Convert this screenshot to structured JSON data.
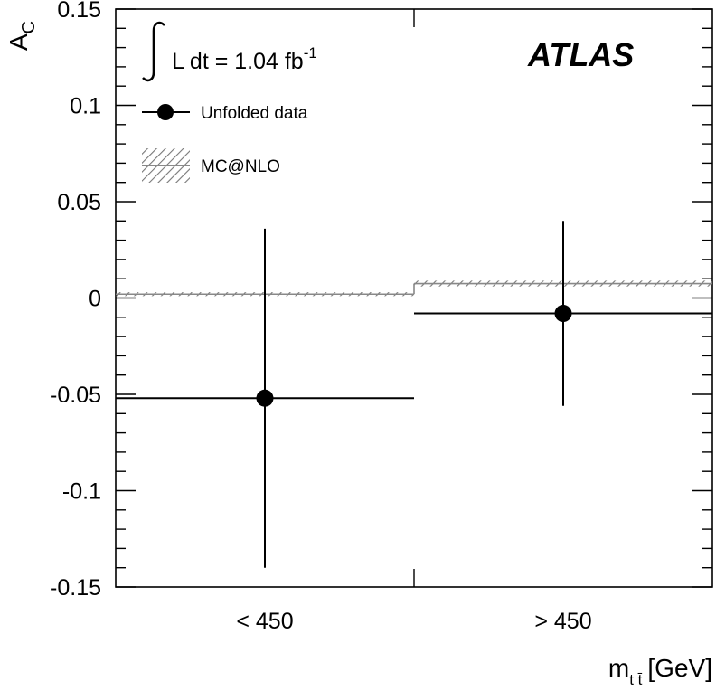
{
  "chart_data": {
    "type": "scatter",
    "experiment_label": "ATLAS",
    "luminosity": {
      "prefix": "L dt = 1.04 fb",
      "superscript": "-1"
    },
    "y_axis": {
      "label_main": "A",
      "label_sub": "C",
      "range": [
        -0.15,
        0.15
      ],
      "major_ticks": [
        -0.15,
        -0.1,
        -0.05,
        0,
        0.05,
        0.1,
        0.15
      ],
      "tick_labels": [
        "-0.15",
        "-0.1",
        "-0.05",
        "0",
        "0.05",
        "0.1",
        "0.15"
      ],
      "minor_step": 0.01
    },
    "x_axis": {
      "label_main": "m",
      "label_sub": "t t̄",
      "label_unit": "[GeV]",
      "categories": [
        "< 450",
        "> 450"
      ]
    },
    "legend": [
      {
        "name": "Unfolded data",
        "marker": "filled-circle-with-line"
      },
      {
        "name": "MC@NLO",
        "marker": "hatched-band"
      }
    ],
    "series": [
      {
        "name": "Unfolded data",
        "points": [
          {
            "category": "< 450",
            "y": -0.052,
            "y_err_low": -0.14,
            "y_err_high": 0.036
          },
          {
            "category": "> 450",
            "y": -0.008,
            "y_err_low": -0.056,
            "y_err_high": 0.04
          }
        ]
      },
      {
        "name": "MC@NLO",
        "band": [
          {
            "category": "< 450",
            "low": 0.001,
            "high": 0.003
          },
          {
            "category": "> 450",
            "low": 0.006,
            "high": 0.009
          }
        ]
      }
    ],
    "colors": {
      "data": "#000000",
      "mc_band": "#888888"
    }
  }
}
